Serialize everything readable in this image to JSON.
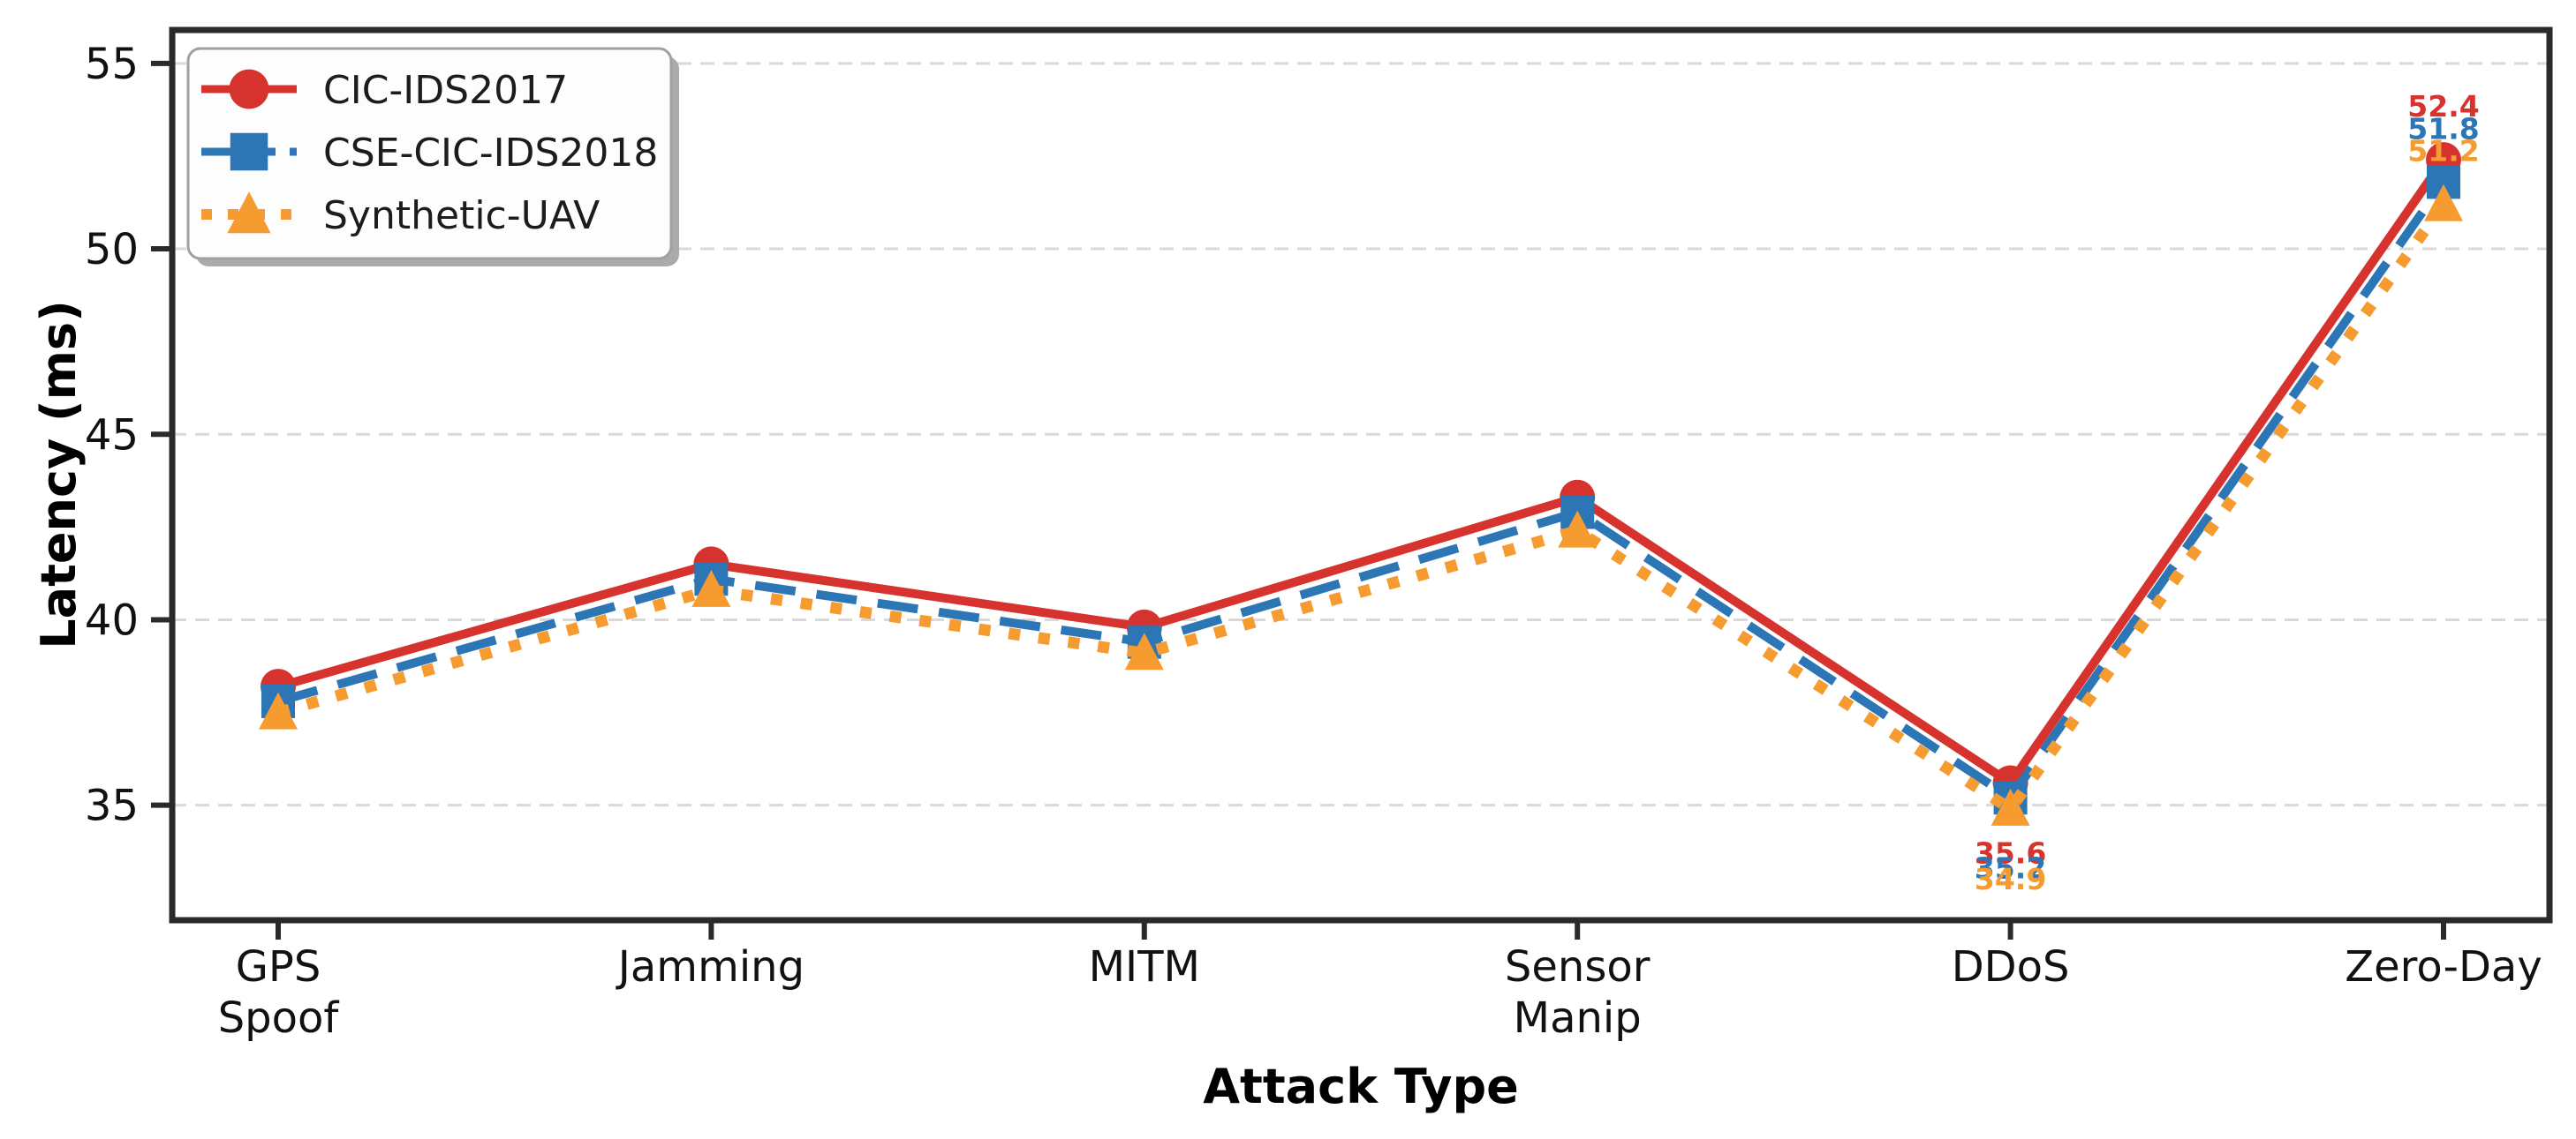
{
  "chart_data": {
    "type": "line",
    "title": "",
    "xlabel": "Attack Type",
    "ylabel": "Latency (ms)",
    "categories": [
      "GPS\nSpoof",
      "Jamming",
      "MITM",
      "Sensor\nManip",
      "DDoS",
      "Zero-Day"
    ],
    "yticks": [
      "35",
      "40",
      "45",
      "50",
      "55"
    ],
    "ylim": [
      31.9,
      55.9
    ],
    "grid": "horizontal-dashed",
    "legend_position": "upper-left",
    "series": [
      {
        "name": "CIC-IDS2017",
        "color": "#d7332e",
        "line_style": "solid",
        "marker": "circle",
        "values": [
          38.2,
          41.5,
          39.8,
          43.3,
          35.6,
          52.4
        ],
        "point_labels": [
          null,
          null,
          null,
          null,
          "35.6",
          "52.4"
        ]
      },
      {
        "name": "CSE-CIC-IDS2018",
        "color": "#2d76b5",
        "line_style": "dashed",
        "marker": "square",
        "values": [
          37.8,
          41.1,
          39.4,
          42.9,
          35.2,
          51.8
        ],
        "point_labels": [
          null,
          null,
          null,
          null,
          "35.2",
          "51.8"
        ]
      },
      {
        "name": "Synthetic-UAV",
        "color": "#f59b30",
        "line_style": "dotted",
        "marker": "triangle",
        "values": [
          37.5,
          40.8,
          39.1,
          42.4,
          34.9,
          51.2
        ],
        "point_labels": [
          null,
          null,
          null,
          null,
          "34.9",
          "51.2"
        ]
      }
    ],
    "point_label_positions": [
      "",
      "",
      "",
      "",
      "below",
      "above"
    ],
    "style": {
      "grid_color": "#d9d9d9",
      "spine_color": "#2a2a2a",
      "tick_color": "#2a2a2a",
      "tick_label_color": "#111111",
      "legend_text_color": "#1c1c1c",
      "legend_fill": "#fdfdfd",
      "legend_border": "#a0a0a0",
      "legend_shadow": "#ababab",
      "background": "#ffffff"
    }
  }
}
